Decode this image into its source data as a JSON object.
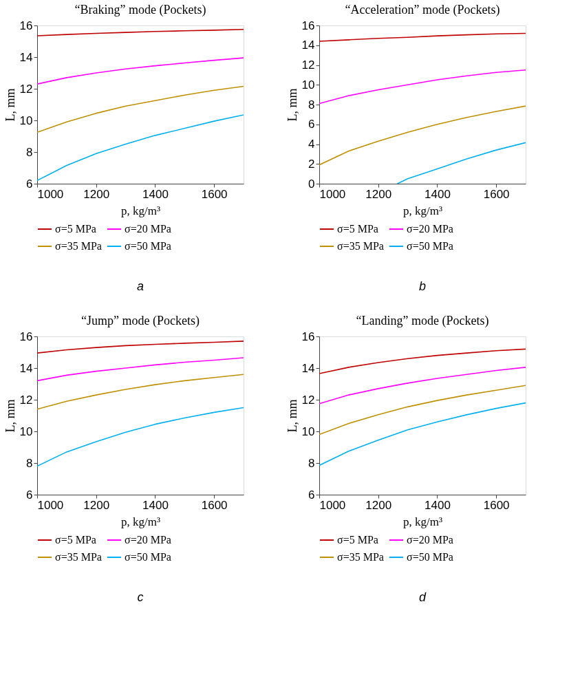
{
  "chart_data": [
    {
      "type": "line",
      "title": "“Braking” mode (Pockets)",
      "xlabel": "p, kg/m³",
      "ylabel": "L, mm",
      "annotations": [
        "a"
      ],
      "x": [
        1000,
        1100,
        1200,
        1300,
        1400,
        1500,
        1600,
        1700
      ],
      "xlim": [
        1000,
        1700
      ],
      "xticks": [
        1000,
        1200,
        1400,
        1600
      ],
      "ylim": [
        6,
        16
      ],
      "yticks": [
        6,
        8,
        10,
        12,
        14,
        16
      ],
      "grid": false,
      "legend": "bottom",
      "marker": "none",
      "line_style": "solid",
      "series": [
        {
          "name": "σ=5 MPa",
          "color": "#c00000",
          "values": [
            15.35,
            15.43,
            15.5,
            15.56,
            15.62,
            15.66,
            15.7,
            15.75
          ]
        },
        {
          "name": "σ=20 MPa",
          "color": "#ff00ff",
          "values": [
            12.3,
            12.7,
            13.0,
            13.25,
            13.45,
            13.63,
            13.8,
            13.95
          ]
        },
        {
          "name": "σ=35 MPa",
          "color": "#bf9000",
          "values": [
            9.25,
            9.9,
            10.45,
            10.9,
            11.25,
            11.6,
            11.9,
            12.15
          ]
        },
        {
          "name": "σ=50 MPa",
          "color": "#00b0f0",
          "values": [
            6.2,
            7.15,
            7.9,
            8.5,
            9.05,
            9.5,
            9.95,
            10.35
          ]
        }
      ]
    },
    {
      "type": "line",
      "title": "“Acceleration” mode (Pockets)",
      "xlabel": "p, kg/m³",
      "ylabel": "L, mm",
      "annotations": [
        "b"
      ],
      "x": [
        1000,
        1100,
        1200,
        1300,
        1400,
        1500,
        1600,
        1700
      ],
      "xlim": [
        1000,
        1700
      ],
      "xticks": [
        1000,
        1200,
        1400,
        1600
      ],
      "ylim": [
        0,
        16
      ],
      "yticks": [
        0,
        2,
        4,
        6,
        8,
        10,
        12,
        14,
        16
      ],
      "grid": false,
      "legend": "bottom",
      "marker": "none",
      "line_style": "solid",
      "series": [
        {
          "name": "σ=5 MPa",
          "color": "#c00000",
          "values": [
            14.4,
            14.55,
            14.7,
            14.8,
            14.95,
            15.05,
            15.15,
            15.2
          ]
        },
        {
          "name": "σ=20 MPa",
          "color": "#ff00ff",
          "values": [
            8.1,
            8.9,
            9.5,
            10.0,
            10.5,
            10.9,
            11.25,
            11.5
          ]
        },
        {
          "name": "σ=35 MPa",
          "color": "#bf9000",
          "values": [
            1.9,
            3.3,
            4.3,
            5.2,
            6.0,
            6.7,
            7.3,
            7.85
          ]
        },
        {
          "name": "σ=50 MPa",
          "color": "#00b0f0",
          "x": [
            1265,
            1300,
            1400,
            1500,
            1600,
            1700
          ],
          "values": [
            0,
            0.5,
            1.5,
            2.5,
            3.4,
            4.15
          ]
        }
      ]
    },
    {
      "type": "line",
      "title": "“Jump” mode (Pockets)",
      "xlabel": "p, kg/m³",
      "ylabel": "L, mm",
      "annotations": [
        "c"
      ],
      "x": [
        1000,
        1100,
        1200,
        1300,
        1400,
        1500,
        1600,
        1700
      ],
      "xlim": [
        1000,
        1700
      ],
      "xticks": [
        1000,
        1200,
        1400,
        1600
      ],
      "ylim": [
        6,
        16
      ],
      "yticks": [
        6,
        8,
        10,
        12,
        14,
        16
      ],
      "grid": false,
      "legend": "bottom",
      "marker": "none",
      "line_style": "solid",
      "series": [
        {
          "name": "σ=5 MPa",
          "color": "#c00000",
          "values": [
            14.95,
            15.15,
            15.3,
            15.42,
            15.5,
            15.57,
            15.63,
            15.7
          ]
        },
        {
          "name": "σ=20 MPa",
          "color": "#ff00ff",
          "values": [
            13.2,
            13.55,
            13.8,
            14.0,
            14.2,
            14.37,
            14.5,
            14.65
          ]
        },
        {
          "name": "σ=35 MPa",
          "color": "#bf9000",
          "values": [
            11.4,
            11.9,
            12.3,
            12.65,
            12.95,
            13.2,
            13.4,
            13.6
          ]
        },
        {
          "name": "σ=50 MPa",
          "color": "#00b0f0",
          "values": [
            7.8,
            8.7,
            9.35,
            9.95,
            10.45,
            10.85,
            11.2,
            11.5
          ]
        }
      ]
    },
    {
      "type": "line",
      "title": "“Landing” mode (Pockets)",
      "xlabel": "p, kg/m³",
      "ylabel": "L, mm",
      "annotations": [
        "d"
      ],
      "x": [
        1000,
        1100,
        1200,
        1300,
        1400,
        1500,
        1600,
        1700
      ],
      "xlim": [
        1000,
        1700
      ],
      "xticks": [
        1000,
        1200,
        1400,
        1600
      ],
      "ylim": [
        6,
        16
      ],
      "yticks": [
        6,
        8,
        10,
        12,
        14,
        16
      ],
      "grid": false,
      "legend": "bottom",
      "marker": "none",
      "line_style": "solid",
      "series": [
        {
          "name": "σ=5 MPa",
          "color": "#c00000",
          "values": [
            13.65,
            14.05,
            14.35,
            14.6,
            14.8,
            14.95,
            15.1,
            15.2
          ]
        },
        {
          "name": "σ=20 MPa",
          "color": "#ff00ff",
          "values": [
            11.75,
            12.3,
            12.7,
            13.05,
            13.35,
            13.6,
            13.85,
            14.05
          ]
        },
        {
          "name": "σ=35 MPa",
          "color": "#bf9000",
          "values": [
            9.8,
            10.5,
            11.05,
            11.55,
            11.95,
            12.3,
            12.6,
            12.9
          ]
        },
        {
          "name": "σ=50 MPa",
          "color": "#00b0f0",
          "values": [
            7.85,
            8.75,
            9.45,
            10.1,
            10.6,
            11.05,
            11.45,
            11.8
          ]
        }
      ]
    }
  ]
}
